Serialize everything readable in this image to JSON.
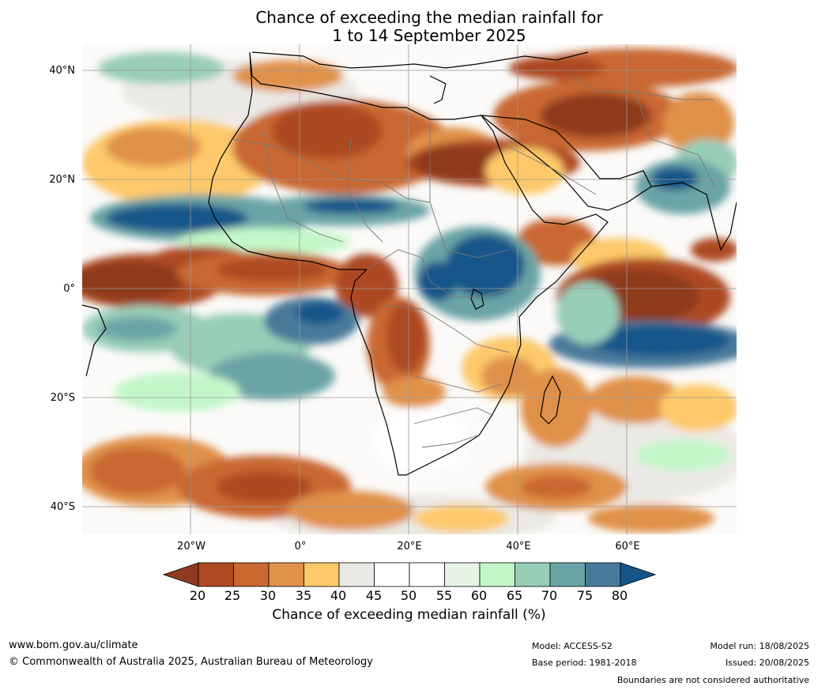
{
  "title_line1": "Chance of exceeding the median rainfall for",
  "title_line2": "1 to 14 September 2025",
  "lat_labels": [
    "40°N",
    "20°N",
    "0°",
    "20°S",
    "40°S"
  ],
  "lon_labels": [
    "20°W",
    "0°",
    "20°E",
    "40°E",
    "60°E"
  ],
  "colorbar": {
    "ticks": [
      "20",
      "25",
      "30",
      "35",
      "40",
      "45",
      "50",
      "55",
      "60",
      "65",
      "70",
      "75",
      "80"
    ],
    "label": "Chance of exceeding median rainfall (%)",
    "colors": [
      "#8e3a1f",
      "#ad4a24",
      "#c96830",
      "#e0914a",
      "#fdc96a",
      "#ebe9e5",
      "#ffffff",
      "#ffffff",
      "#e5f4e7",
      "#c3f7c9",
      "#98cdb8",
      "#6aa4a6",
      "#4a7a9a",
      "#14568a"
    ]
  },
  "footer": {
    "url": "www.bom.gov.au/climate",
    "copyright": "© Commonwealth of Australia 2025, Australian Bureau of Meteorology",
    "model": "Model: ACCESS-S2",
    "base_period": "Base period: 1981-2018",
    "model_run": "Model run: 18/08/2025",
    "issued": "Issued: 20/08/2025",
    "disclaimer": "Boundaries are not considered authoritative"
  }
}
